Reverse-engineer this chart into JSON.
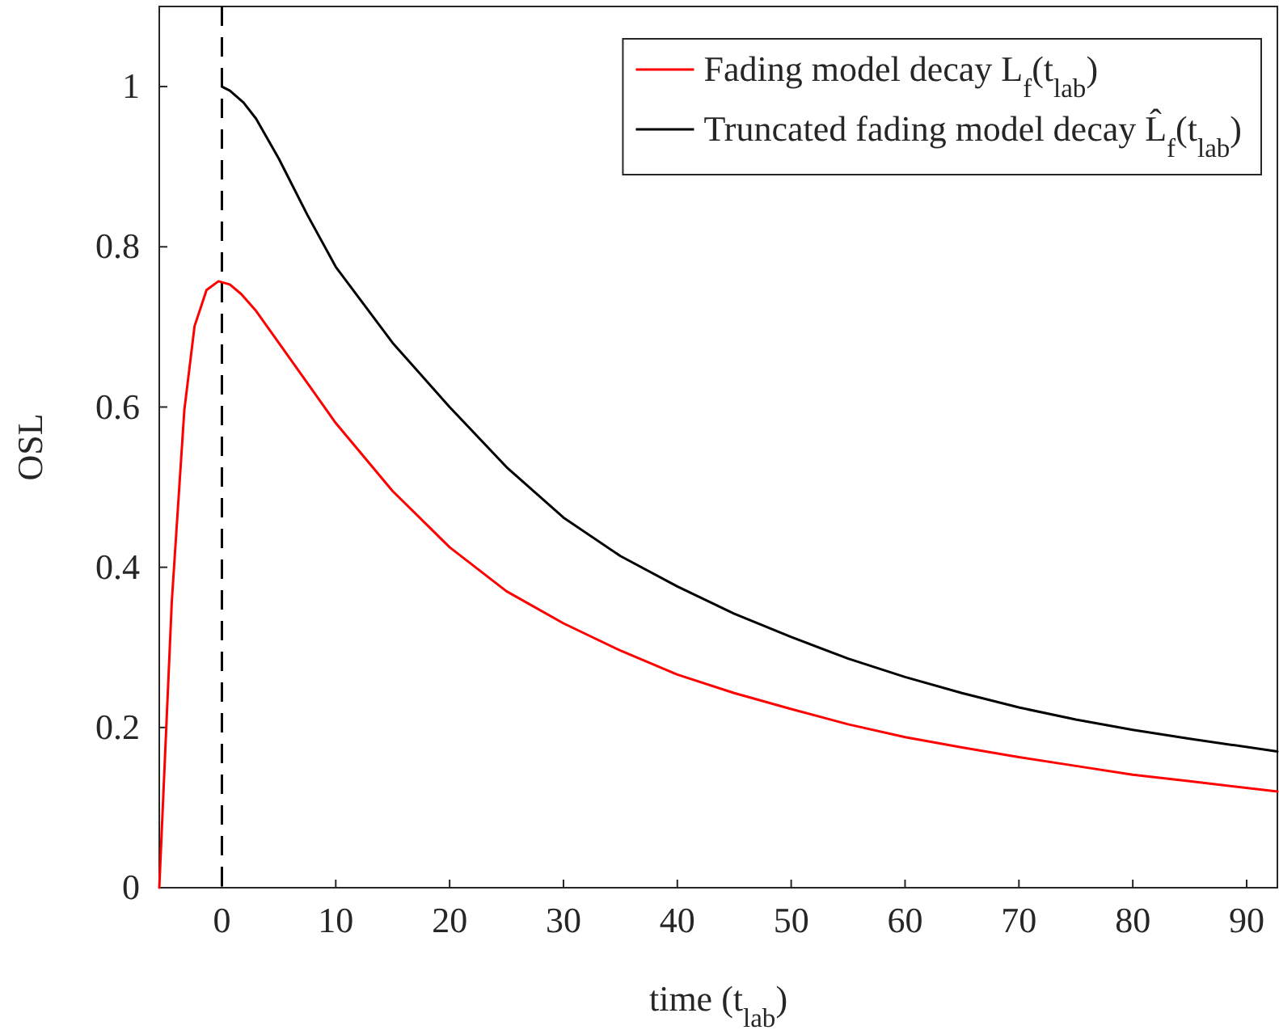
{
  "chart_data": {
    "type": "line",
    "xlabel": "time (t$_{lab}$)",
    "ylabel": "OSL",
    "xlim": [
      -5.5,
      92.7
    ],
    "ylim": [
      0,
      1.1
    ],
    "xticks": [
      0,
      10,
      20,
      30,
      40,
      50,
      60,
      70,
      80,
      90
    ],
    "yticks": [
      0,
      0.2,
      0.4,
      0.6,
      0.8,
      1
    ],
    "legend": "top right",
    "line_style": "solid",
    "marker": "none",
    "ref_lines": [
      {
        "axis": "x",
        "value": 0,
        "color": "#000000",
        "line_style": "dashed"
      }
    ],
    "series": [
      {
        "name": "Fading model decay L$_{f}$(t$_{lab}$)",
        "color": "#ff0000",
        "x": [
          -5.5,
          -4.4,
          -3.3,
          -2.4,
          -1.35,
          -0.3,
          0.7,
          1.7,
          3,
          5,
          7.5,
          10,
          15,
          20,
          25,
          30,
          35,
          40,
          45,
          50,
          55,
          60,
          65,
          70,
          75,
          80,
          85,
          92.7
        ],
        "values": [
          0,
          0.357,
          0.596,
          0.701,
          0.746,
          0.757,
          0.753,
          0.741,
          0.72,
          0.68,
          0.63,
          0.58,
          0.495,
          0.425,
          0.37,
          0.33,
          0.296,
          0.266,
          0.243,
          0.223,
          0.204,
          0.188,
          0.175,
          0.163,
          0.152,
          0.141,
          0.133,
          0.12
        ]
      },
      {
        "name": "Truncated fading model decay L̂$_{f}$(t$_{lab}$)",
        "color": "#000000",
        "x": [
          0,
          0.7,
          1.9,
          3,
          5,
          7.5,
          10,
          15,
          20,
          25,
          30,
          35,
          40,
          45,
          50,
          55,
          60,
          65,
          70,
          75,
          80,
          85,
          92.7
        ],
        "values": [
          1,
          0.995,
          0.98,
          0.96,
          0.91,
          0.84,
          0.775,
          0.68,
          0.6,
          0.525,
          0.462,
          0.414,
          0.376,
          0.342,
          0.313,
          0.286,
          0.263,
          0.243,
          0.225,
          0.21,
          0.197,
          0.186,
          0.17
        ]
      }
    ]
  }
}
